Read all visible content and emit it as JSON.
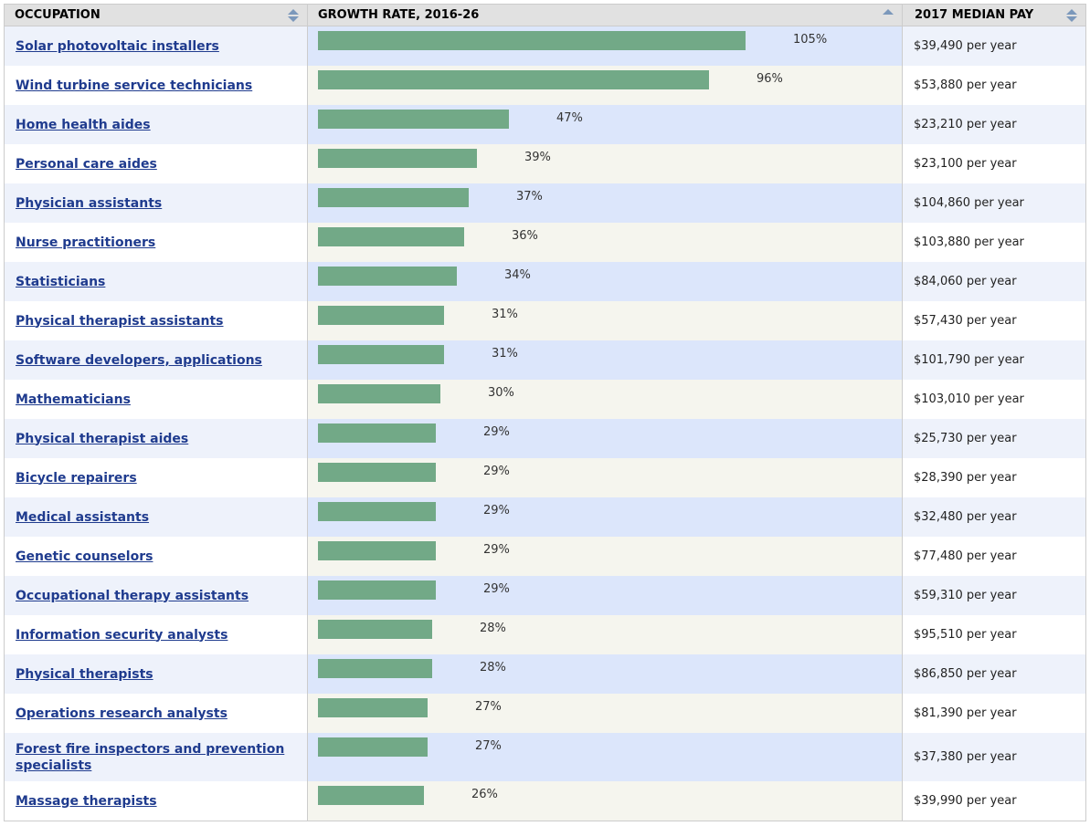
{
  "header": {
    "occupation": "OCCUPATION",
    "growth_rate": "GROWTH RATE, 2016-26",
    "median_pay": "2017 MEDIAN PAY"
  },
  "colors": {
    "bar": "#72a987",
    "link": "#1f3b8e",
    "sort_icon": "#7b98bb"
  },
  "chart_data": {
    "type": "bar",
    "orientation": "horizontal",
    "xlim": [
      0,
      140
    ],
    "categories": [
      "Solar photovoltaic installers",
      "Wind turbine service technicians",
      "Home health aides",
      "Personal care aides",
      "Physician assistants",
      "Nurse practitioners",
      "Statisticians",
      "Physical therapist assistants",
      "Software developers, applications",
      "Mathematicians",
      "Physical therapist aides",
      "Bicycle repairers",
      "Medical assistants",
      "Genetic counselors",
      "Occupational therapy assistants",
      "Information security analysts",
      "Physical therapists",
      "Operations research analysts",
      "Forest fire inspectors and prevention specialists",
      "Massage therapists"
    ],
    "values": [
      105,
      96,
      47,
      39,
      37,
      36,
      34,
      31,
      31,
      30,
      29,
      29,
      29,
      29,
      29,
      28,
      28,
      27,
      27,
      26
    ],
    "value_labels": [
      "105%",
      "96%",
      "47%",
      "39%",
      "37%",
      "36%",
      "34%",
      "31%",
      "31%",
      "30%",
      "29%",
      "29%",
      "29%",
      "29%",
      "29%",
      "28%",
      "28%",
      "27%",
      "27%",
      "26%"
    ],
    "pay": [
      "$39,490 per year",
      "$53,880 per year",
      "$23,210 per year",
      "$23,100 per year",
      "$104,860 per year",
      "$103,880 per year",
      "$84,060 per year",
      "$57,430 per year",
      "$101,790 per year",
      "$103,010 per year",
      "$25,730 per year",
      "$28,390 per year",
      "$32,480 per year",
      "$77,480 per year",
      "$59,310 per year",
      "$95,510 per year",
      "$86,850 per year",
      "$81,390 per year",
      "$37,380 per year",
      "$39,990 per year"
    ]
  }
}
